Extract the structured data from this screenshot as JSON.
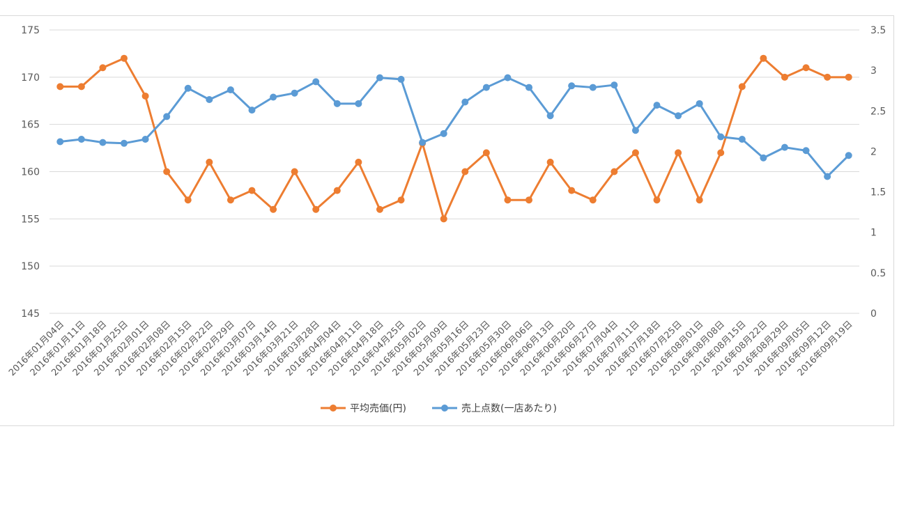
{
  "chart_data": {
    "type": "line",
    "title": "",
    "xlabel": "",
    "ylabel": "",
    "categories": [
      "2016年01月04日",
      "2016年01月11日",
      "2016年01月18日",
      "2016年01月25日",
      "2016年02月01日",
      "2016年02月08日",
      "2016年02月15日",
      "2016年02月22日",
      "2016年02月29日",
      "2016年03月07日",
      "2016年03月14日",
      "2016年03月21日",
      "2016年03月28日",
      "2016年04月04日",
      "2016年04月11日",
      "2016年04月18日",
      "2016年04月25日",
      "2016年05月02日",
      "2016年05月09日",
      "2016年05月16日",
      "2016年05月23日",
      "2016年05月30日",
      "2016年06月06日",
      "2016年06月13日",
      "2016年06月20日",
      "2016年06月27日",
      "2016年07月04日",
      "2016年07月11日",
      "2016年07月18日",
      "2016年07月25日",
      "2016年08月01日",
      "2016年08月08日",
      "2016年08月15日",
      "2016年08月22日",
      "2016年08月29日",
      "2016年09月05日",
      "2016年09月12日",
      "2016年09月19日"
    ],
    "y_left": {
      "range": [
        145,
        175
      ],
      "ticks": [
        "145",
        "150",
        "155",
        "160",
        "165",
        "170",
        "175"
      ]
    },
    "y_right": {
      "range": [
        0,
        3.5
      ],
      "ticks": [
        "0",
        "0.5",
        "1",
        "1.5",
        "2",
        "2.5",
        "3",
        "3.5"
      ]
    },
    "grid": true,
    "legend_position": "bottom",
    "series": [
      {
        "name": "平均売価(円)",
        "axis": "left",
        "color": "#ED7D31",
        "values": [
          169,
          169,
          171,
          172,
          168,
          160,
          157,
          161,
          157,
          158,
          156,
          160,
          156,
          158,
          161,
          156,
          157,
          163,
          155,
          160,
          162,
          157,
          157,
          161,
          158,
          157,
          160,
          162,
          157,
          162,
          157,
          162,
          169,
          172,
          170,
          171,
          170,
          170
        ]
      },
      {
        "name": "売上点数(一店あたり)",
        "axis": "right",
        "color": "#5B9BD5",
        "values": [
          2.12,
          2.15,
          2.11,
          2.1,
          2.15,
          2.43,
          2.78,
          2.64,
          2.76,
          2.51,
          2.67,
          2.72,
          2.86,
          2.59,
          2.59,
          2.91,
          2.89,
          2.11,
          2.22,
          2.61,
          2.79,
          2.91,
          2.79,
          2.44,
          2.81,
          2.79,
          2.82,
          2.26,
          2.57,
          2.44,
          2.59,
          2.18,
          2.15,
          1.92,
          2.05,
          2.01,
          1.69,
          1.95
        ]
      }
    ]
  }
}
